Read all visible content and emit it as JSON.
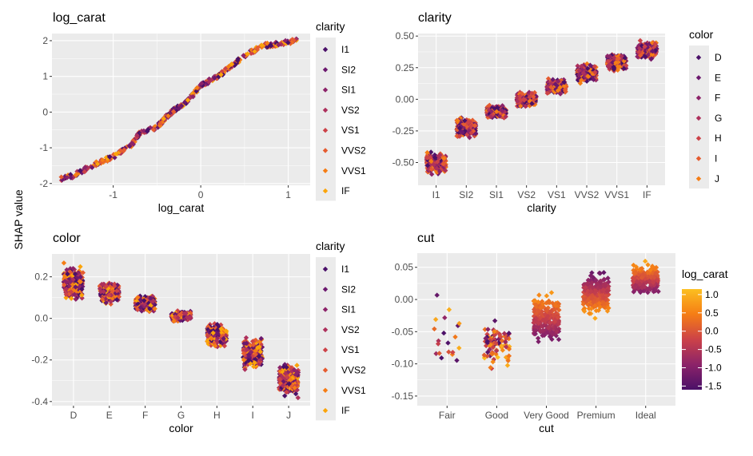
{
  "y_axis_label": "SHAP value",
  "palette": [
    "#4a1068",
    "#6b186e",
    "#8c2369",
    "#ad305c",
    "#cc4248",
    "#e55c30",
    "#f57d15",
    "#fba40a"
  ],
  "gradient": [
    "#4a1068",
    "#8c2369",
    "#cc4248",
    "#f57d15",
    "#fcbf20"
  ],
  "chart_data": [
    {
      "type": "scatter",
      "title": "log_carat",
      "xlabel": "log_carat",
      "ylabel": "SHAP value",
      "xlim": [
        -1.7,
        1.25
      ],
      "ylim": [
        -2.05,
        2.2
      ],
      "xticks": [
        "-1",
        "0",
        "1"
      ],
      "yticks": [
        "-2",
        "-1",
        "0",
        "1",
        "2"
      ],
      "grid": true,
      "legend": {
        "title": "clarity",
        "position": "right",
        "entries": [
          "I1",
          "SI2",
          "SI1",
          "VS2",
          "VS1",
          "VVS2",
          "VVS1",
          "IF"
        ]
      },
      "curve": [
        [
          -1.6,
          -1.87
        ],
        [
          -1.45,
          -1.77
        ],
        [
          -1.2,
          -1.45
        ],
        [
          -1.0,
          -1.25
        ],
        [
          -0.8,
          -0.95
        ],
        [
          -0.7,
          -0.6
        ],
        [
          -0.5,
          -0.42
        ],
        [
          -0.4,
          -0.15
        ],
        [
          -0.3,
          0.07
        ],
        [
          -0.15,
          0.3
        ],
        [
          0,
          0.75
        ],
        [
          0.2,
          1.0
        ],
        [
          0.35,
          1.3
        ],
        [
          0.55,
          1.65
        ],
        [
          0.7,
          1.85
        ],
        [
          0.9,
          1.92
        ],
        [
          1.1,
          2.0
        ]
      ]
    },
    {
      "type": "strip",
      "title": "clarity",
      "xlabel": "clarity",
      "ylim": [
        -0.68,
        0.52
      ],
      "yticks": [
        "0.50",
        "0.25",
        "0.00",
        "-0.25",
        "-0.50"
      ],
      "grid": true,
      "categories": [
        "I1",
        "SI2",
        "SI1",
        "VS2",
        "VS1",
        "VVS2",
        "VVS1",
        "IF"
      ],
      "ranges": [
        [
          -0.62,
          -0.4
        ],
        [
          -0.32,
          -0.13
        ],
        [
          -0.16,
          -0.04
        ],
        [
          -0.07,
          0.07
        ],
        [
          0.03,
          0.17
        ],
        [
          0.12,
          0.29
        ],
        [
          0.21,
          0.38
        ],
        [
          0.3,
          0.48
        ]
      ],
      "legend": {
        "title": "color",
        "position": "right",
        "entries": [
          "D",
          "E",
          "F",
          "G",
          "H",
          "I",
          "J"
        ]
      }
    },
    {
      "type": "strip",
      "title": "color",
      "xlabel": "color",
      "ylim": [
        -0.42,
        0.31
      ],
      "yticks": [
        "0.2",
        "0.0",
        "-0.2",
        "-0.4"
      ],
      "grid": true,
      "categories": [
        "D",
        "E",
        "F",
        "G",
        "H",
        "I",
        "J"
      ],
      "ranges": [
        [
          0.06,
          0.28
        ],
        [
          0.06,
          0.19
        ],
        [
          0.02,
          0.12
        ],
        [
          -0.02,
          0.04
        ],
        [
          -0.15,
          -0.01
        ],
        [
          -0.26,
          -0.07
        ],
        [
          -0.39,
          -0.2
        ]
      ],
      "legend": {
        "title": "clarity",
        "position": "right",
        "entries": [
          "I1",
          "SI2",
          "SI1",
          "VS2",
          "VS1",
          "VVS2",
          "VVS1",
          "IF"
        ]
      }
    },
    {
      "type": "strip",
      "title": "cut",
      "xlabel": "cut",
      "ylim": [
        -0.165,
        0.072
      ],
      "yticks": [
        "0.05",
        "0.00",
        "-0.05",
        "-0.10",
        "-0.15"
      ],
      "grid": true,
      "categories": [
        "Fair",
        "Good",
        "Very Good",
        "Premium",
        "Ideal"
      ],
      "ranges": [
        [
          -0.155,
          0.04
        ],
        [
          -0.115,
          -0.025
        ],
        [
          -0.076,
          0.019
        ],
        [
          -0.032,
          0.05
        ],
        [
          -0.001,
          0.062
        ]
      ],
      "legend": {
        "title": "log_carat",
        "position": "right",
        "type": "colorbar",
        "range": [
          -1.6,
          1.15
        ],
        "labels": [
          "1.0",
          "0.5",
          "0.0",
          "-0.5",
          "-1.0",
          "-1.5"
        ]
      }
    }
  ]
}
